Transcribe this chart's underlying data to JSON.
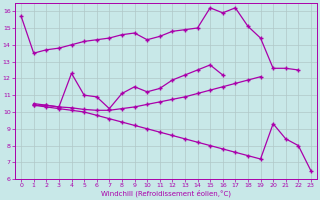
{
  "background_color": "#c8e8e8",
  "grid_color": "#b0c8c8",
  "line_color": "#aa00aa",
  "xlim": [
    -0.5,
    23.5
  ],
  "ylim": [
    6,
    16.5
  ],
  "xlabel": "Windchill (Refroidissement éolien,°C)",
  "xticks": [
    0,
    1,
    2,
    3,
    4,
    5,
    6,
    7,
    8,
    9,
    10,
    11,
    12,
    13,
    14,
    15,
    16,
    17,
    18,
    19,
    20,
    21,
    22,
    23
  ],
  "yticks": [
    6,
    7,
    8,
    9,
    10,
    11,
    12,
    13,
    14,
    15,
    16
  ],
  "series": [
    {
      "x": [
        0,
        1,
        2,
        3,
        4,
        5,
        6,
        7,
        8,
        9,
        10,
        11,
        12,
        13,
        14,
        15,
        16,
        17,
        18,
        19,
        20,
        21,
        22
      ],
      "y": [
        15.7,
        13.5,
        13.7,
        13.8,
        14.0,
        14.2,
        14.3,
        14.4,
        14.6,
        14.7,
        14.3,
        14.5,
        14.8,
        14.9,
        15.0,
        16.2,
        15.9,
        16.2,
        15.1,
        14.4,
        12.6,
        12.6,
        12.5
      ],
      "linestyle": "-"
    },
    {
      "x": [
        1,
        2,
        3,
        4,
        5,
        6,
        7,
        8,
        9,
        10,
        11,
        12,
        13,
        14,
        15,
        16
      ],
      "y": [
        10.4,
        10.4,
        10.3,
        12.3,
        11.0,
        10.9,
        10.2,
        11.1,
        11.5,
        11.2,
        11.4,
        11.9,
        12.2,
        12.5,
        12.8,
        12.2
      ],
      "linestyle": "-"
    },
    {
      "x": [
        1,
        2,
        3,
        4,
        5,
        6,
        7,
        8,
        9,
        10,
        11,
        12,
        13,
        14,
        15,
        16,
        17,
        18,
        19
      ],
      "y": [
        10.5,
        10.4,
        10.3,
        10.25,
        10.15,
        10.1,
        10.1,
        10.2,
        10.3,
        10.45,
        10.6,
        10.75,
        10.9,
        11.1,
        11.3,
        11.5,
        11.7,
        11.9,
        12.1
      ],
      "linestyle": "-"
    },
    {
      "x": [
        1,
        2,
        3,
        4,
        5,
        6,
        7,
        8,
        9,
        10,
        11,
        12,
        13,
        14,
        15,
        16,
        17,
        18,
        19,
        20,
        21,
        22,
        23
      ],
      "y": [
        10.4,
        10.3,
        10.2,
        10.1,
        10.0,
        9.8,
        9.6,
        9.4,
        9.2,
        9.0,
        8.8,
        8.6,
        8.4,
        8.2,
        8.0,
        7.8,
        7.6,
        7.4,
        7.2,
        9.3,
        8.4,
        8.0,
        6.5
      ],
      "linestyle": "-"
    }
  ]
}
